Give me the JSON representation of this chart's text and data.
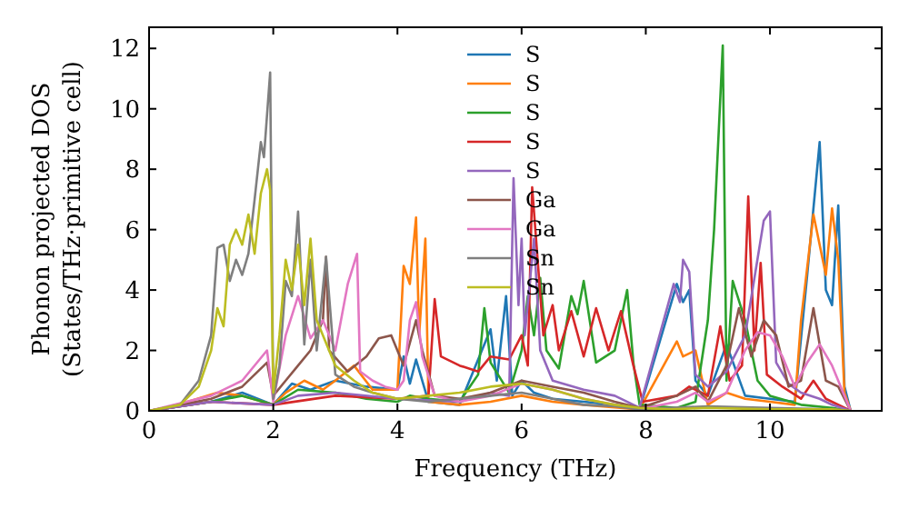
{
  "chart_data": {
    "type": "line",
    "xlabel": "Frequency (THz)",
    "ylabel": "Phonon projected DOS\n(States/THz·primitive cell)",
    "xlim": [
      0,
      11.8
    ],
    "ylim": [
      0,
      12.7
    ],
    "xticks": [
      0,
      2,
      4,
      6,
      8,
      10
    ],
    "yticks": [
      0,
      2,
      4,
      6,
      8,
      10,
      12
    ],
    "grid": false,
    "legend": "top",
    "line_style": "solid",
    "marker": "none",
    "series": [
      {
        "name": "S",
        "color": "#1f77b4",
        "x": [
          0,
          1,
          1.5,
          2,
          2.3,
          2.6,
          3,
          3.5,
          4,
          4.1,
          4.2,
          4.3,
          4.5,
          5,
          5.5,
          5.6,
          5.75,
          5.85,
          6,
          6.2,
          6.5,
          7,
          7.5,
          7.9,
          8.5,
          8.6,
          8.7,
          8.8,
          9,
          9.3,
          9.6,
          10,
          10.4,
          10.6,
          10.8,
          10.9,
          11,
          11.1,
          11.2,
          11.3
        ],
        "values": [
          0,
          0.3,
          0.6,
          0.2,
          0.9,
          0.7,
          1,
          0.8,
          0.7,
          1.8,
          0.9,
          1.7,
          0.3,
          0.2,
          2.7,
          1,
          3.8,
          0.5,
          1,
          0.6,
          0.4,
          0.3,
          0.2,
          0.05,
          4.2,
          3.6,
          4,
          1,
          0.5,
          2.2,
          0.5,
          0.4,
          0.3,
          4.5,
          8.9,
          4,
          3.5,
          6.8,
          0.8,
          0
        ]
      },
      {
        "name": "S",
        "color": "#ff7f0e",
        "x": [
          0.3,
          1.1,
          1.5,
          2,
          2.2,
          2.5,
          2.8,
          3,
          3.3,
          3.6,
          4,
          4.1,
          4.2,
          4.3,
          4.35,
          4.45,
          4.5,
          5,
          5.5,
          6,
          6.5,
          7,
          7.9,
          8.5,
          8.6,
          8.8,
          9,
          9.3,
          9.6,
          10,
          10.4,
          10.5,
          10.7,
          10.9,
          11,
          11.1,
          11.2,
          11.3
        ],
        "values": [
          0.1,
          0.6,
          0.5,
          0.2,
          0.6,
          1,
          0.7,
          1,
          1.5,
          0.7,
          0.7,
          4.8,
          4.2,
          6.4,
          2.5,
          5.7,
          0.3,
          0.2,
          0.3,
          0.5,
          0.3,
          0.2,
          0.05,
          2.3,
          1.8,
          2,
          0.2,
          0.6,
          0.4,
          0.3,
          0.2,
          3,
          6.5,
          4.5,
          6.7,
          5,
          0.6,
          0
        ]
      },
      {
        "name": "S",
        "color": "#2ca02c",
        "x": [
          0,
          1,
          1.5,
          2,
          2.4,
          3,
          3.5,
          4,
          4.2,
          4.5,
          5,
          5.3,
          5.4,
          5.5,
          5.8,
          6,
          6.1,
          6.2,
          6.3,
          6.4,
          6.6,
          6.8,
          6.9,
          7,
          7.2,
          7.5,
          7.7,
          7.8,
          7.9,
          8.5,
          8.8,
          9,
          9.1,
          9.24,
          9.3,
          9.4,
          9.6,
          9.8,
          10,
          10.5,
          11,
          11.3
        ],
        "values": [
          0,
          0.3,
          0.5,
          0.2,
          0.7,
          0.6,
          0.4,
          0.3,
          0.5,
          0.4,
          0.3,
          1.2,
          3.4,
          1.6,
          0.6,
          2,
          3.8,
          2.5,
          4.4,
          2,
          1.4,
          3.8,
          3.2,
          4.3,
          1.6,
          2,
          4,
          1.6,
          0.2,
          0.1,
          0.3,
          3,
          6,
          12.1,
          1,
          4.3,
          3,
          1,
          0.5,
          0.2,
          0.1,
          0
        ]
      },
      {
        "name": "S",
        "color": "#d62728",
        "x": [
          0,
          1,
          2,
          3,
          4,
          4.5,
          4.6,
          4.7,
          5,
          5.3,
          5.5,
          5.8,
          6,
          6.1,
          6.17,
          6.35,
          6.5,
          6.6,
          6.8,
          7,
          7.2,
          7.4,
          7.6,
          7.8,
          7.95,
          8.5,
          8.7,
          9,
          9.2,
          9.35,
          9.55,
          9.65,
          9.75,
          9.85,
          9.95,
          10.2,
          10.5,
          10.7,
          10.9,
          11.3
        ],
        "values": [
          0,
          0.3,
          0.2,
          0.5,
          0.4,
          0.5,
          3.7,
          1.8,
          1.5,
          1.3,
          1.8,
          1.7,
          2.5,
          1.5,
          7.4,
          2.5,
          3.5,
          2,
          3.3,
          1.8,
          3.4,
          2,
          3.3,
          1.5,
          0.3,
          0.5,
          0.8,
          0.5,
          2.8,
          1,
          1.5,
          7.1,
          2,
          4.9,
          1.2,
          0.8,
          0.4,
          1,
          0.4,
          0
        ]
      },
      {
        "name": "S",
        "color": "#9467bd",
        "x": [
          0,
          1,
          2,
          2.4,
          3,
          4,
          5,
          5.5,
          5.8,
          5.87,
          5.95,
          6,
          6.05,
          6.2,
          6.3,
          6.5,
          7,
          7.5,
          7.9,
          8.45,
          8.55,
          8.6,
          8.7,
          8.8,
          9,
          9.3,
          9.6,
          9.9,
          10,
          10.1,
          10.3,
          10.5,
          10.8,
          11,
          11.3
        ],
        "values": [
          0,
          0.3,
          0.2,
          0.5,
          0.6,
          0.4,
          0.3,
          0.6,
          0.5,
          7.7,
          3.5,
          5.7,
          2.5,
          5.7,
          2,
          1,
          0.7,
          0.5,
          0.1,
          4.2,
          3.6,
          5,
          4.6,
          1.2,
          0.8,
          1.3,
          2.5,
          6.3,
          6.6,
          1.6,
          0.9,
          0.6,
          0.4,
          0.2,
          0
        ]
      },
      {
        "name": "Ga",
        "color": "#8c564b",
        "x": [
          0,
          1,
          1.5,
          1.9,
          2,
          2.2,
          2.4,
          2.6,
          2.8,
          2.85,
          2.9,
          3.2,
          3.5,
          3.7,
          3.9,
          4.1,
          4.3,
          4.4,
          4.6,
          5,
          5.5,
          6,
          6.5,
          7,
          7.5,
          7.9,
          8.5,
          8.8,
          9,
          9.3,
          9.5,
          9.7,
          9.9,
          10.1,
          10.3,
          10.5,
          10.7,
          10.9,
          11.1,
          11.3
        ],
        "values": [
          0,
          0.4,
          0.8,
          1.6,
          0.5,
          1,
          1.5,
          2,
          3,
          5.1,
          2,
          1.3,
          1.8,
          2.4,
          2.5,
          1.5,
          3,
          2,
          0.5,
          0.4,
          0.6,
          1,
          0.8,
          0.6,
          0.3,
          0.1,
          0.5,
          0.8,
          0.3,
          1.5,
          3.4,
          1.8,
          3,
          2.5,
          0.8,
          1,
          3.4,
          1,
          0.8,
          0
        ]
      },
      {
        "name": "Ga",
        "color": "#e377c2",
        "x": [
          0,
          1,
          1.5,
          1.9,
          2,
          2.2,
          2.4,
          2.6,
          2.8,
          3,
          3.2,
          3.35,
          3.4,
          3.6,
          3.8,
          4,
          4.1,
          4.2,
          4.3,
          4.4,
          4.6,
          5,
          5.5,
          6,
          6.5,
          7,
          7.5,
          7.9,
          8.5,
          8.8,
          9,
          9.3,
          9.6,
          9.8,
          10,
          10.2,
          10.4,
          10.6,
          10.8,
          11,
          11.2,
          11.3
        ],
        "values": [
          0,
          0.5,
          1,
          2,
          0.3,
          2.5,
          3.8,
          2.4,
          3,
          2,
          4.2,
          5.2,
          1.3,
          1,
          0.8,
          0.7,
          1,
          3,
          3.6,
          1.8,
          0.5,
          0.3,
          0.5,
          0.9,
          0.7,
          0.4,
          0.2,
          0.05,
          0.3,
          0.6,
          0.3,
          0.6,
          2,
          2.6,
          2.5,
          1.8,
          0.8,
          1.6,
          2.2,
          1.5,
          0.5,
          0
        ]
      },
      {
        "name": "Sn",
        "color": "#7f7f7f",
        "x": [
          0,
          0.5,
          0.8,
          1,
          1.1,
          1.2,
          1.3,
          1.4,
          1.5,
          1.6,
          1.7,
          1.8,
          1.85,
          1.95,
          2,
          2.1,
          2.2,
          2.3,
          2.4,
          2.5,
          2.6,
          2.7,
          2.85,
          3,
          3.3,
          3.6,
          4,
          4.5,
          5,
          5.5,
          6,
          6.5,
          7,
          7.5,
          7.9,
          8.4,
          9,
          10,
          11,
          11.3
        ],
        "values": [
          0,
          0.2,
          1,
          2.5,
          5.4,
          5.5,
          4.3,
          5,
          4.5,
          5.2,
          7,
          8.9,
          8.4,
          11.2,
          0.4,
          1.5,
          4.3,
          3.8,
          6.6,
          2.2,
          5,
          2,
          5.1,
          1.2,
          0.8,
          0.6,
          0.4,
          0.3,
          0.4,
          0.5,
          0.6,
          0.4,
          0.2,
          0.15,
          0.05,
          0.1,
          0.15,
          0.1,
          0.05,
          0
        ]
      },
      {
        "name": "Sn",
        "color": "#bcbd22",
        "x": [
          0,
          0.5,
          0.8,
          1,
          1.1,
          1.2,
          1.3,
          1.4,
          1.5,
          1.6,
          1.7,
          1.8,
          1.9,
          1.95,
          2,
          2.1,
          2.2,
          2.3,
          2.4,
          2.5,
          2.6,
          2.7,
          2.8,
          3,
          3.3,
          3.6,
          4,
          4.5,
          5,
          5.5,
          6,
          6.5,
          7,
          7.5,
          7.9,
          8.4,
          9,
          10,
          11,
          11.3
        ],
        "values": [
          0,
          0.2,
          0.8,
          2,
          3.4,
          2.8,
          5.5,
          6,
          5.5,
          6.5,
          5.2,
          7.2,
          8,
          7.3,
          0.6,
          2.5,
          5,
          4,
          5.5,
          3.5,
          5.7,
          3,
          2.5,
          1.5,
          1,
          0.6,
          0.4,
          0.5,
          0.6,
          0.8,
          0.9,
          0.7,
          0.4,
          0.2,
          0.1,
          0.05,
          0.1,
          0.05,
          0.05,
          0
        ]
      }
    ]
  }
}
